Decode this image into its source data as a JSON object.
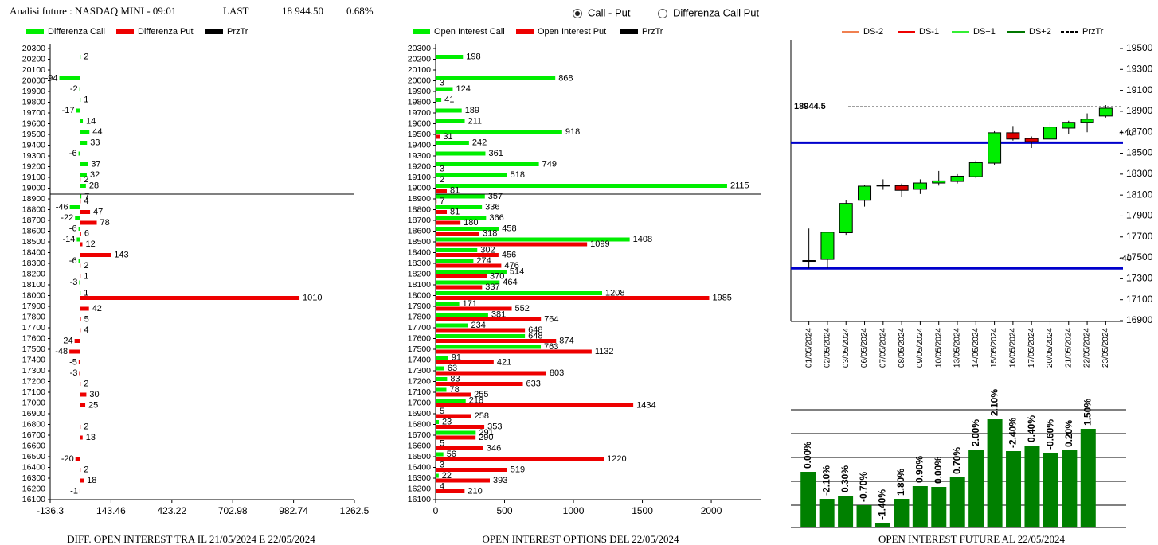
{
  "header": {
    "title": "Analisi future : NASDAQ MINI - 09:01",
    "last_label": "LAST",
    "last_value": "18 944.50",
    "change": "0.68%"
  },
  "controls": {
    "options": [
      "Call - Put",
      "Differenza Call Put"
    ],
    "selected": 0
  },
  "chart_data": [
    {
      "type": "hbar",
      "title": "DIFF. OPEN INTEREST TRA IL 21/05/2024 E 22/05/2024",
      "categories": [
        20300,
        20200,
        20100,
        20000,
        19900,
        19800,
        19700,
        19600,
        19500,
        19400,
        19300,
        19200,
        19100,
        19000,
        18900,
        18800,
        18700,
        18600,
        18500,
        18400,
        18300,
        18200,
        18100,
        18000,
        17900,
        17800,
        17700,
        17600,
        17500,
        17400,
        17300,
        17200,
        17100,
        17000,
        16900,
        16800,
        16700,
        16600,
        16500,
        16400,
        16300,
        16200,
        16100
      ],
      "series": [
        {
          "name": "Differenza Call",
          "color": "#00ee00",
          "values": [
            null,
            2,
            null,
            -94,
            -2,
            1,
            -17,
            14,
            44,
            33,
            -6,
            37,
            32,
            28,
            7,
            -46,
            -22,
            -6,
            -14,
            null,
            -6,
            null,
            -3,
            1,
            null,
            null,
            null,
            null,
            null,
            null,
            null,
            null,
            null,
            null,
            null,
            null,
            null,
            null,
            null,
            null,
            null,
            null,
            null
          ]
        },
        {
          "name": "Differenza Put",
          "color": "#ee0000",
          "values": [
            null,
            null,
            null,
            null,
            null,
            null,
            null,
            null,
            null,
            null,
            null,
            null,
            2,
            null,
            4,
            47,
            78,
            6,
            12,
            143,
            2,
            1,
            null,
            1010,
            42,
            5,
            4,
            -24,
            -48,
            -5,
            -3,
            2,
            30,
            25,
            null,
            2,
            13,
            null,
            -20,
            2,
            18,
            -1,
            null
          ]
        }
      ],
      "price_line": {
        "name": "PrzTr",
        "color": "#000000"
      },
      "xlim": [
        -136.3,
        1262.5
      ],
      "xticks": [
        -136.3,
        143.46,
        423.22,
        702.98,
        982.74,
        1262.5
      ]
    },
    {
      "type": "hbar",
      "title": "OPEN INTEREST OPTIONS DEL 22/05/2024",
      "categories": [
        20300,
        20200,
        20100,
        20000,
        19900,
        19800,
        19700,
        19600,
        19500,
        19400,
        19300,
        19200,
        19100,
        19000,
        18900,
        18800,
        18700,
        18600,
        18500,
        18400,
        18300,
        18200,
        18100,
        18000,
        17900,
        17800,
        17700,
        17600,
        17500,
        17400,
        17300,
        17200,
        17100,
        17000,
        16900,
        16800,
        16700,
        16600,
        16500,
        16400,
        16300,
        16200,
        16100
      ],
      "series": [
        {
          "name": "Open Interest Call",
          "color": "#00ee00",
          "values": [
            null,
            198,
            null,
            868,
            124,
            41,
            189,
            211,
            918,
            242,
            361,
            749,
            518,
            2115,
            357,
            336,
            366,
            458,
            1408,
            302,
            274,
            514,
            464,
            1208,
            171,
            381,
            234,
            648,
            763,
            91,
            63,
            83,
            78,
            218,
            5,
            23,
            291,
            5,
            56,
            3,
            22,
            4,
            null
          ]
        },
        {
          "name": "Open Interest Put",
          "color": "#ee0000",
          "values": [
            null,
            null,
            null,
            3,
            null,
            null,
            null,
            null,
            31,
            null,
            null,
            3,
            2,
            81,
            7,
            81,
            180,
            318,
            1099,
            456,
            476,
            370,
            337,
            1985,
            552,
            764,
            648,
            874,
            1132,
            421,
            803,
            633,
            255,
            1434,
            258,
            353,
            290,
            346,
            1220,
            519,
            393,
            210,
            null
          ]
        }
      ],
      "price_line": {
        "name": "PrzTr",
        "color": "#000000"
      },
      "xlim": [
        0,
        2358
      ],
      "xticks": [
        0,
        500,
        1000,
        1500,
        2000
      ]
    },
    {
      "type": "candlestick",
      "title": "",
      "categories": [
        "01/05/2024",
        "02/05/2024",
        "03/05/2024",
        "06/05/2024",
        "07/05/2024",
        "08/05/2024",
        "09/05/2024",
        "10/05/2024",
        "13/05/2024",
        "14/05/2024",
        "15/05/2024",
        "16/05/2024",
        "17/05/2024",
        "20/05/2024",
        "21/05/2024",
        "22/05/2024",
        "23/05/2024"
      ],
      "open": [
        17470,
        17485,
        17740,
        18050,
        18190,
        18190,
        18155,
        18215,
        18230,
        18275,
        18405,
        18695,
        18640,
        18635,
        18740,
        18795,
        18855
      ],
      "high": [
        17780,
        17750,
        18050,
        18200,
        18250,
        18210,
        18250,
        18330,
        18300,
        18430,
        18710,
        18760,
        18660,
        18800,
        18810,
        18880,
        18960
      ],
      "low": [
        17400,
        17400,
        17720,
        17990,
        18150,
        18080,
        18110,
        18190,
        18210,
        18260,
        18390,
        18620,
        18550,
        18630,
        18680,
        18700,
        18840
      ],
      "close": [
        17470,
        17745,
        18020,
        18185,
        18190,
        18145,
        18215,
        18235,
        18280,
        18410,
        18695,
        18635,
        18610,
        18750,
        18795,
        18825,
        18930
      ],
      "up_color": "#00ee00",
      "down_color": "#dd0000",
      "legend": [
        {
          "name": "DS-2",
          "color": "#f08050"
        },
        {
          "name": "DS-1",
          "color": "#ee0000"
        },
        {
          "name": "DS+1",
          "color": "#33ee33"
        },
        {
          "name": "DS+2",
          "color": "#007700"
        },
        {
          "name": "PrzTr",
          "color": "#000000",
          "style": "dashed"
        }
      ],
      "price_line": {
        "value": 18944.5
      },
      "levels": [
        {
          "value": 18600,
          "label": "+40"
        },
        {
          "value": 17400,
          "label": "-40"
        }
      ],
      "level_color": "#0000cc",
      "ylim": [
        16900,
        19500
      ],
      "yticks": [
        16900,
        17100,
        17300,
        17500,
        17700,
        17900,
        18100,
        18300,
        18500,
        18700,
        18900,
        19100,
        19300,
        19500
      ]
    },
    {
      "type": "bar",
      "title": "OPEN INTEREST FUTURE AL 22/05/2024",
      "values": [
        70,
        36,
        40,
        28,
        6,
        36,
        52,
        51,
        63,
        98,
        136,
        96,
        103,
        94,
        97,
        124
      ],
      "labels": [
        "0.00%",
        "-2.10%",
        "0.30%",
        "-0.70%",
        "-1.40%",
        "1.80%",
        "0.90%",
        "0.00%",
        "0.70%",
        "2.00%",
        "2.10%",
        "-2.40%",
        "0.40%",
        "-0.60%",
        "0.20%",
        "1.50%"
      ],
      "color": "#008000",
      "ylim": [
        0,
        150
      ]
    }
  ]
}
